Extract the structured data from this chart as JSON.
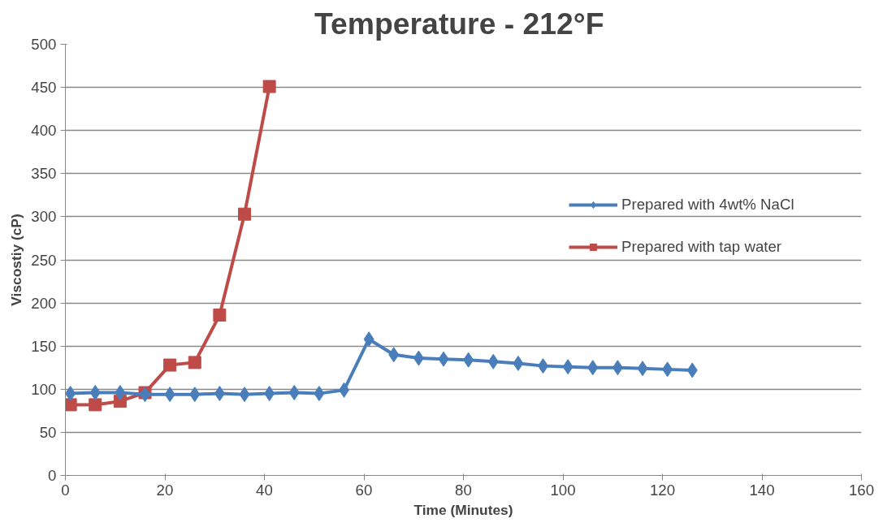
{
  "chart_data": {
    "type": "line",
    "title": "Temperature -  212°F",
    "xlabel": "Time (Minutes)",
    "ylabel": "Viscostiy (cP)",
    "xlim": [
      0,
      160
    ],
    "xticks": [
      0,
      20,
      40,
      60,
      80,
      100,
      120,
      140,
      160
    ],
    "ylim": [
      0,
      500
    ],
    "yticks": [
      0,
      50,
      100,
      150,
      200,
      250,
      300,
      350,
      400,
      450,
      500
    ],
    "grid": "y",
    "legend": "right",
    "series": [
      {
        "name": "Prepared with 4wt% NaCl",
        "color": "#4a7ebb",
        "marker": "diamond",
        "x": [
          1,
          6,
          11,
          16,
          21,
          26,
          31,
          36,
          41,
          46,
          51,
          56,
          61,
          66,
          71,
          76,
          81,
          86,
          91,
          96,
          101,
          106,
          111,
          116,
          121,
          126
        ],
        "values": [
          95,
          96,
          96,
          94,
          94,
          94,
          95,
          94,
          95,
          96,
          95,
          99,
          158,
          140,
          136,
          135,
          134,
          132,
          130,
          127,
          126,
          125,
          125,
          124,
          123,
          122
        ]
      },
      {
        "name": "Prepared with tap water",
        "color": "#be4b48",
        "marker": "square",
        "x": [
          1,
          6,
          11,
          16,
          21,
          26,
          31,
          36,
          41
        ],
        "values": [
          82,
          82,
          86,
          96,
          128,
          131,
          186,
          303,
          451
        ]
      }
    ]
  }
}
